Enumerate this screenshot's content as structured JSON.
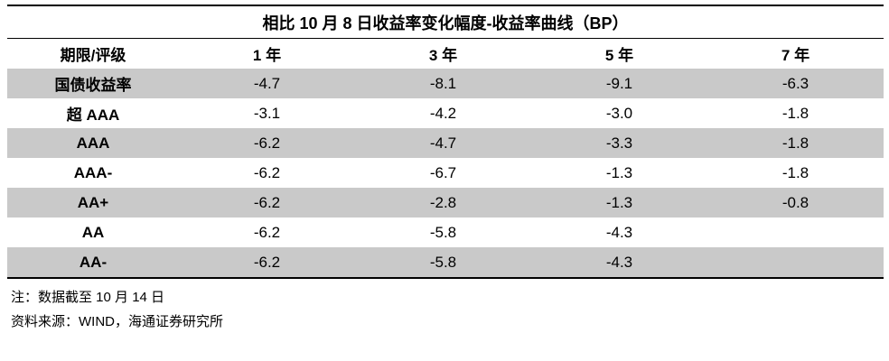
{
  "table": {
    "title": "相比 10 月 8 日收益率变化幅度-收益率曲线（BP）",
    "header": [
      "期限/评级",
      "1 年",
      "3 年",
      "5 年",
      "7 年"
    ],
    "rows": [
      [
        "国债收益率",
        "-4.7",
        "-8.1",
        "-9.1",
        "-6.3"
      ],
      [
        "超 AAA",
        "-3.1",
        "-4.2",
        "-3.0",
        "-1.8"
      ],
      [
        "AAA",
        "-6.2",
        "-4.7",
        "-3.3",
        "-1.8"
      ],
      [
        "AAA-",
        "-6.2",
        "-6.7",
        "-1.3",
        "-1.8"
      ],
      [
        "AA+",
        "-6.2",
        "-2.8",
        "-1.3",
        "-0.8"
      ],
      [
        "AA",
        "-6.2",
        "-5.8",
        "-4.3"
      ],
      [
        "AA-",
        "-6.2",
        "-5.8",
        "-4.3"
      ]
    ]
  },
  "notes": [
    "注：数据截至 10 月 14 日",
    "资料来源：WIND，海通证券研究所"
  ]
}
